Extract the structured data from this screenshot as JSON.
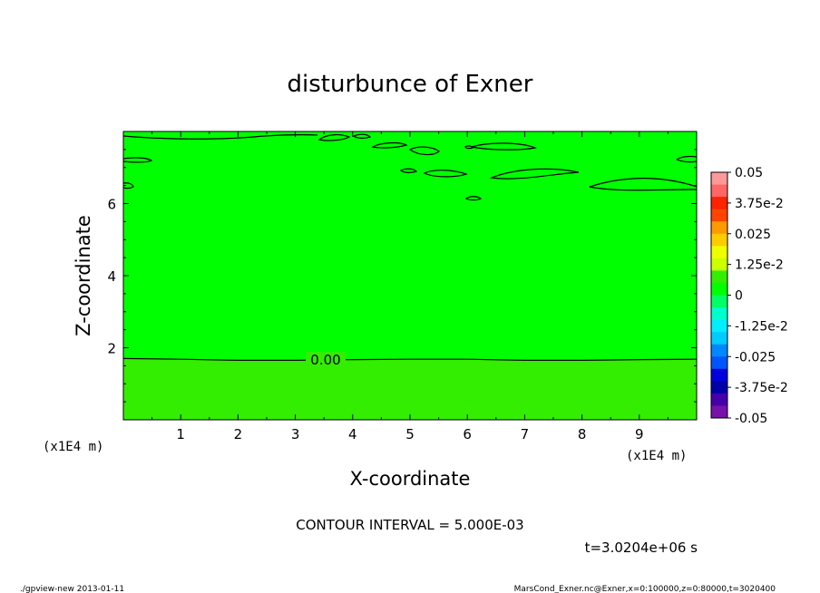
{
  "chart_data": {
    "type": "contour",
    "title": "disturbunce of Exner",
    "xlabel": "X-coordinate",
    "ylabel": "Z-coordinate",
    "x_unit_label": "(x1E4 m)",
    "y_unit_label": "(x1E4 m)",
    "xlim": [
      0,
      10
    ],
    "ylim": [
      0,
      8
    ],
    "xticks": [
      1,
      2,
      3,
      4,
      5,
      6,
      7,
      8,
      9
    ],
    "xtick_labels": [
      "1",
      "2",
      "3",
      "4",
      "5",
      "6",
      "7",
      "8",
      "9"
    ],
    "yticks": [
      2,
      4,
      6
    ],
    "ytick_labels": [
      "2",
      "4",
      "6"
    ],
    "contour_interval_text": "CONTOUR INTERVAL = 5.000E-03",
    "time_text": "t=3.0204e+06 s",
    "contour_label": "0.00",
    "zero_line_z": [
      1.7,
      1.68,
      1.65,
      1.65,
      1.67,
      1.68,
      1.68,
      1.65,
      1.65,
      1.67,
      1.68
    ],
    "zero_line_x": [
      0,
      1,
      2,
      3,
      4,
      5,
      6,
      7,
      8,
      9,
      10
    ],
    "fill_colors": {
      "lower": "#33ee00",
      "upper": "#00ff00"
    },
    "colorbar": {
      "levels": [
        "0.05",
        "3.75e-2",
        "0.025",
        "1.25e-2",
        "0",
        "-1.25e-2",
        "-0.025",
        "-3.75e-2",
        "-0.05"
      ],
      "colors": [
        "#ff9999",
        "#ff6666",
        "#ff2200",
        "#ff4400",
        "#ff9900",
        "#ffcc00",
        "#eeff00",
        "#ccff00",
        "#33ee00",
        "#00ff00",
        "#00ff66",
        "#00ffcc",
        "#00eeff",
        "#00ccff",
        "#0088ff",
        "#0055ff",
        "#0000dd",
        "#0000aa",
        "#4400aa",
        "#7711aa"
      ]
    }
  },
  "footer": {
    "left": "./gpview-new  2013-01-11",
    "right": "MarsCond_Exner.nc@Exner,x=0:100000,z=0:80000,t=3020400"
  }
}
